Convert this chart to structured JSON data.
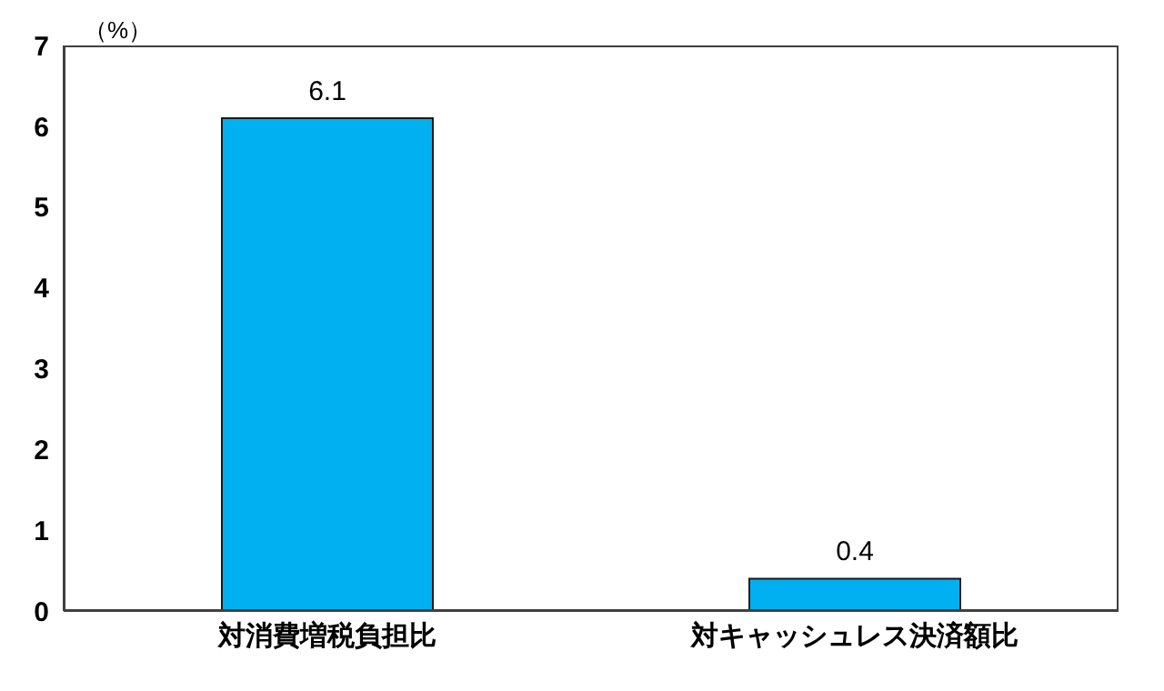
{
  "chart_data": {
    "type": "bar",
    "ylabel": "（%）",
    "categories": [
      "対消費増税負担比",
      "対キャッシュレス決済額比"
    ],
    "values": [
      6.1,
      0.4
    ],
    "color": "#00b0f0",
    "ylim": [
      0,
      7
    ],
    "yticks": [
      0,
      1,
      2,
      3,
      4,
      5,
      6,
      7
    ],
    "data_labels": true,
    "grid": false
  }
}
